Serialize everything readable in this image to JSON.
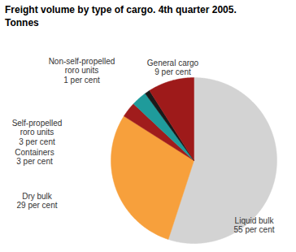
{
  "chart_data": {
    "type": "pie",
    "title": "Freight volume by type of cargo. 4th quarter 2005.",
    "subtitle": "Tonnes",
    "categories": [
      "Liquid bulk",
      "Dry bulk",
      "Containers",
      "Self-propelled roro units",
      "Non-self-propelled roro units",
      "General cargo"
    ],
    "values": [
      55,
      29,
      3,
      3,
      1,
      9
    ],
    "value_labels": [
      "55 per cent",
      "29 per cent",
      "3 per cent",
      "3 per cent",
      "1 per cent",
      "9 per cent"
    ],
    "colors": [
      "#d3d3d3",
      "#f7a03c",
      "#a01c1c",
      "#1f9b9b",
      "#1a1a1a",
      "#9e1a1a"
    ],
    "data_labels": true
  }
}
